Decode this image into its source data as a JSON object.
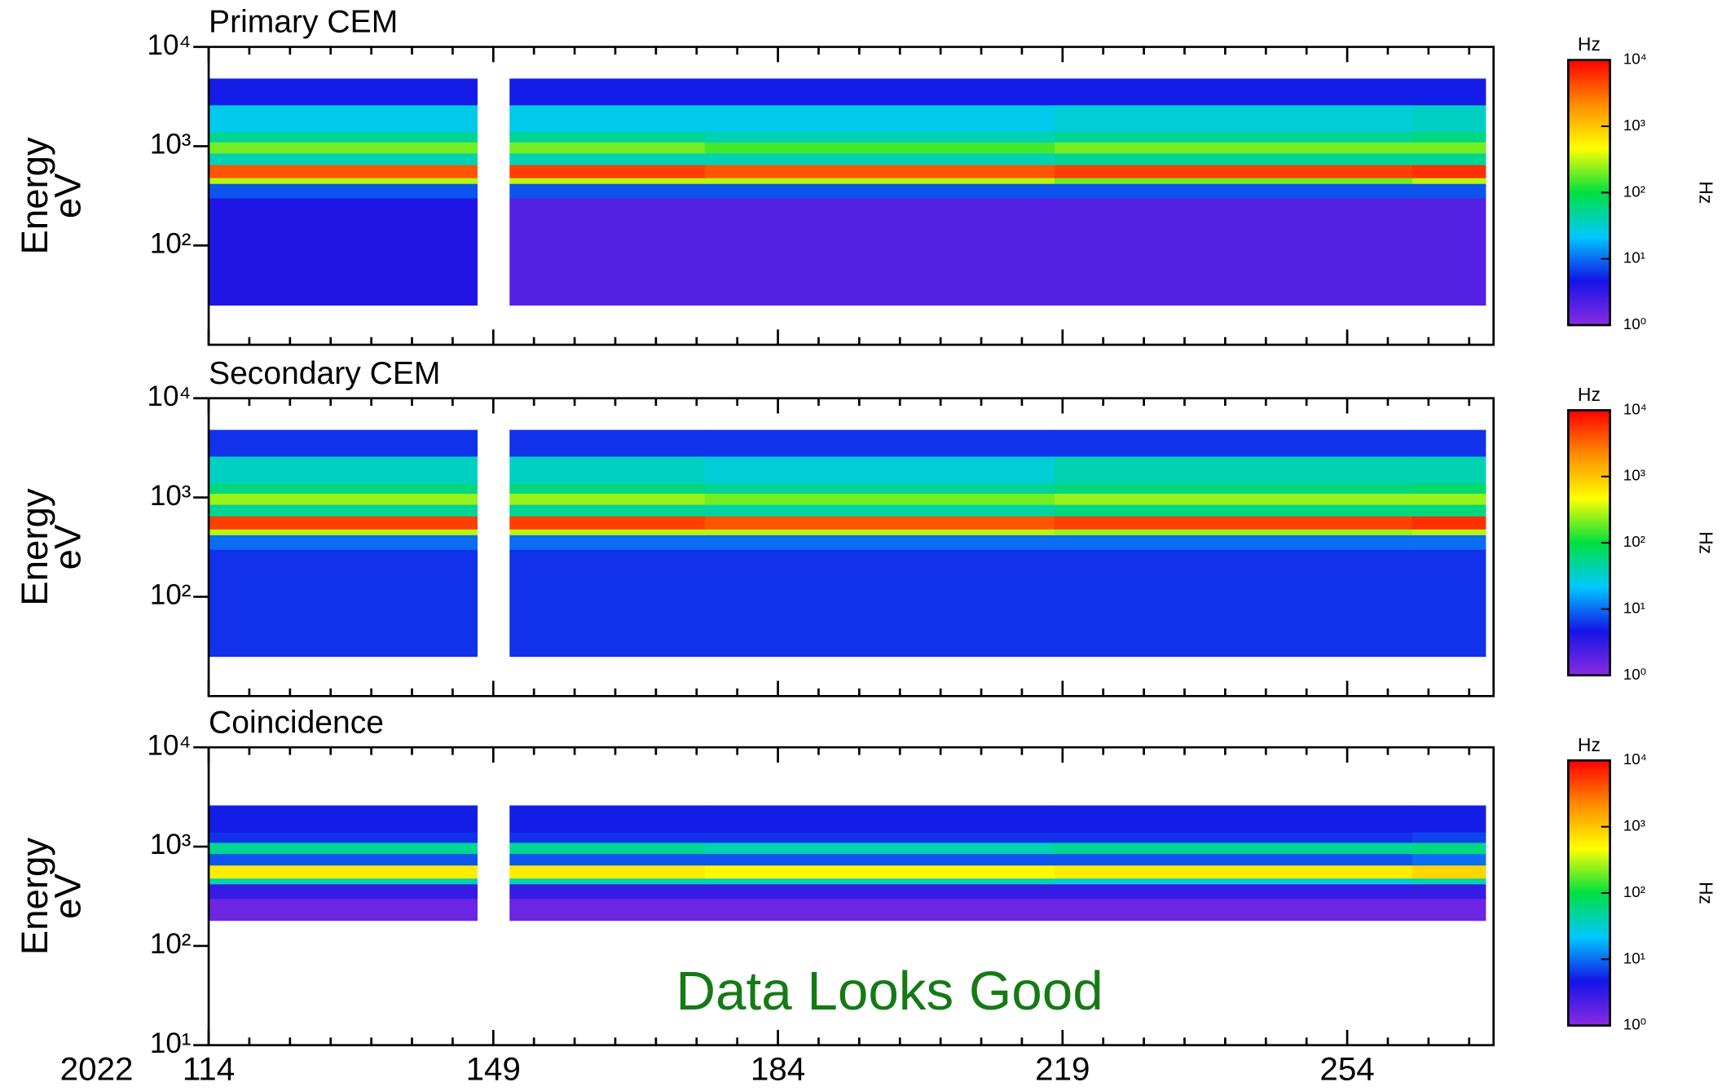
{
  "chart_data": {
    "type": "heatmap",
    "year_label": "2022",
    "xlim": [
      114,
      272
    ],
    "xticks": [
      114,
      149,
      184,
      219,
      254
    ],
    "xminorticks": [
      119,
      124,
      129,
      134,
      139,
      144,
      154,
      159,
      164,
      169,
      174,
      179,
      189,
      194,
      199,
      204,
      209,
      214,
      224,
      229,
      234,
      239,
      244,
      249,
      259,
      264,
      269
    ],
    "x_edges": [
      114,
      147,
      151,
      175,
      218,
      262,
      271
    ],
    "ylabel": [
      "Energy",
      "eV"
    ],
    "log_y": true,
    "colorbar_label": "Hz",
    "colorbar_lim": [
      1,
      10000
    ],
    "colorbar_ticks": [
      {
        "value": 1,
        "label": "10⁰"
      },
      {
        "value": 10,
        "label": "10¹"
      },
      {
        "value": 100,
        "label": "10²"
      },
      {
        "value": 1000,
        "label": "10³"
      },
      {
        "value": 10000,
        "label": "10⁴"
      }
    ],
    "colormap": [
      "#8a2be2",
      "#1414e6",
      "#00c8ff",
      "#00e040",
      "#ffff00",
      "#ff8c00",
      "#ff0000"
    ],
    "annotation": "Data Looks Good",
    "annotation_color": "#157a15",
    "panels": [
      {
        "title": "Primary CEM",
        "ylim": [
          10,
          10000
        ],
        "yticks": [
          {
            "value": 100,
            "label": "10²"
          },
          {
            "value": 1000,
            "label": "10³"
          },
          {
            "value": 10000,
            "label": "10⁴"
          }
        ],
        "energy_edges": [
          25,
          300,
          420,
          480,
          650,
          850,
          1100,
          1400,
          2600,
          4800
        ],
        "z": [
          [
            4,
            null,
            2,
            2,
            2,
            2
          ],
          [
            8,
            null,
            8,
            8,
            8,
            8
          ],
          [
            300,
            null,
            300,
            300,
            200,
            300
          ],
          [
            4000,
            null,
            5000,
            4000,
            5000,
            6000
          ],
          [
            40,
            null,
            40,
            40,
            50,
            50
          ],
          [
            200,
            null,
            200,
            150,
            200,
            200
          ],
          [
            50,
            null,
            50,
            40,
            50,
            60
          ],
          [
            25,
            null,
            25,
            25,
            30,
            35
          ],
          [
            5,
            null,
            5,
            5,
            5,
            5
          ]
        ]
      },
      {
        "title": "Secondary CEM",
        "ylim": [
          10,
          10000
        ],
        "yticks": [
          {
            "value": 100,
            "label": "10²"
          },
          {
            "value": 1000,
            "label": "10³"
          },
          {
            "value": 10000,
            "label": "10⁴"
          }
        ],
        "energy_edges": [
          25,
          300,
          420,
          480,
          650,
          850,
          1100,
          1400,
          2600,
          4800
        ],
        "z": [
          [
            6,
            null,
            6,
            6,
            6,
            6
          ],
          [
            10,
            null,
            10,
            10,
            10,
            10
          ],
          [
            300,
            null,
            300,
            300,
            250,
            300
          ],
          [
            5000,
            null,
            5000,
            4000,
            5000,
            6000
          ],
          [
            50,
            null,
            50,
            45,
            60,
            60
          ],
          [
            250,
            null,
            250,
            200,
            250,
            250
          ],
          [
            60,
            null,
            60,
            50,
            60,
            70
          ],
          [
            35,
            null,
            35,
            30,
            40,
            40
          ],
          [
            6,
            null,
            6,
            6,
            6,
            6
          ]
        ]
      },
      {
        "title": "Coincidence",
        "ylim": [
          10,
          10000
        ],
        "yticks": [
          {
            "value": 10,
            "label": "10¹"
          },
          {
            "value": 100,
            "label": "10²"
          },
          {
            "value": 1000,
            "label": "10³"
          },
          {
            "value": 10000,
            "label": "10⁴"
          }
        ],
        "energy_edges": [
          180,
          300,
          420,
          480,
          650,
          850,
          1100,
          1400,
          2600
        ],
        "z": [
          [
            1.5,
            null,
            1.5,
            1.5,
            1.5,
            1.5
          ],
          [
            3,
            null,
            3,
            3,
            3,
            3
          ],
          [
            40,
            null,
            40,
            40,
            30,
            40
          ],
          [
            600,
            null,
            600,
            500,
            600,
            800
          ],
          [
            8,
            null,
            8,
            8,
            8,
            10
          ],
          [
            50,
            null,
            50,
            40,
            50,
            60
          ],
          [
            6,
            null,
            6,
            6,
            6,
            7
          ],
          [
            5,
            null,
            5,
            5,
            5,
            5
          ]
        ]
      }
    ]
  }
}
